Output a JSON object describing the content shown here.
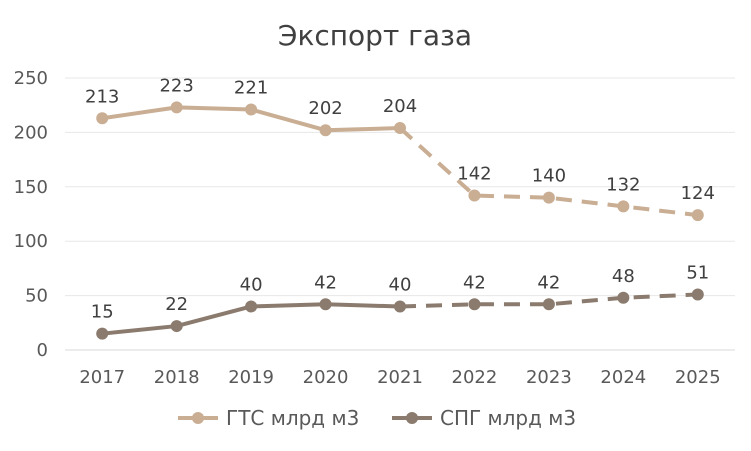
{
  "chart_data": {
    "type": "line",
    "title": "Экспорт газа",
    "categories": [
      "2017",
      "2018",
      "2019",
      "2020",
      "2021",
      "2022",
      "2023",
      "2024",
      "2025"
    ],
    "ylim": [
      0,
      250
    ],
    "yticks": [
      0,
      50,
      100,
      150,
      200,
      250
    ],
    "grid": true,
    "legend_position": "bottom",
    "series": [
      {
        "name": "ГТС млрд м3",
        "values": [
          213,
          223,
          221,
          202,
          204,
          142,
          140,
          132,
          124
        ],
        "color": "#c9ae94",
        "solid_until_index": 4,
        "style_after": "dashed"
      },
      {
        "name": "СПГ млрд м3",
        "values": [
          15,
          22,
          40,
          42,
          40,
          42,
          42,
          48,
          51
        ],
        "color": "#8b7b6e",
        "solid_until_index": 4,
        "style_after": "dashed"
      }
    ]
  }
}
